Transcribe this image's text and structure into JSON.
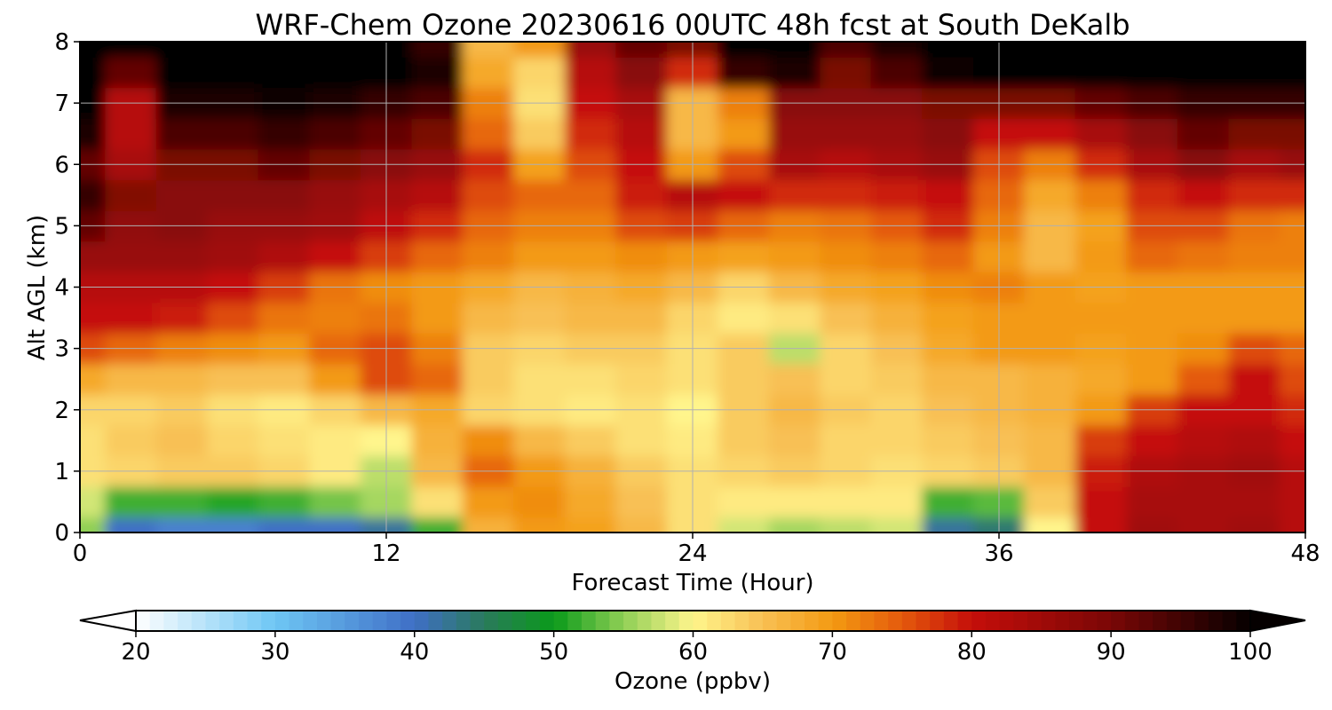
{
  "chart_data": {
    "type": "heatmap",
    "title": "WRF-Chem Ozone  20230616 00UTC 48h fcst at South DeKalb",
    "xlabel": "Forecast Time (Hour)",
    "ylabel": "Alt AGL (km)",
    "xlim": [
      0,
      48
    ],
    "ylim": [
      0,
      8
    ],
    "xticks": [
      0,
      12,
      24,
      36,
      48
    ],
    "xtick_labels": [
      "0",
      "12",
      "24",
      "36",
      "48"
    ],
    "yticks": [
      0,
      1,
      2,
      3,
      4,
      5,
      6,
      7,
      8
    ],
    "ytick_labels": [
      "0",
      "1",
      "2",
      "3",
      "4",
      "5",
      "6",
      "7",
      "8"
    ],
    "grid": true,
    "colorbar": {
      "label": "Ozone  (ppbv)",
      "range": [
        20,
        100
      ],
      "extend": "both",
      "ticks": [
        20,
        30,
        40,
        50,
        60,
        70,
        80,
        90,
        100
      ],
      "tick_labels": [
        "20",
        "30",
        "40",
        "50",
        "60",
        "70",
        "80",
        "90",
        "100"
      ],
      "stops": [
        {
          "v": 20,
          "c": "#ffffff"
        },
        {
          "v": 30,
          "c": "#6ec6f4"
        },
        {
          "v": 40,
          "c": "#3f6fc6"
        },
        {
          "v": 45,
          "c": "#2a7a5c"
        },
        {
          "v": 50,
          "c": "#0a9a1a"
        },
        {
          "v": 55,
          "c": "#8fcf55"
        },
        {
          "v": 60,
          "c": "#fff58c"
        },
        {
          "v": 65,
          "c": "#f8c054"
        },
        {
          "v": 70,
          "c": "#f39a12"
        },
        {
          "v": 75,
          "c": "#e45a0c"
        },
        {
          "v": 80,
          "c": "#c50e0a"
        },
        {
          "v": 90,
          "c": "#7a0706"
        },
        {
          "v": 100,
          "c": "#050000"
        }
      ]
    },
    "x": [
      0,
      2,
      4,
      6,
      8,
      10,
      12,
      14,
      16,
      18,
      20,
      22,
      24,
      26,
      28,
      30,
      32,
      34,
      36,
      38,
      40,
      42,
      44,
      46,
      48
    ],
    "y": [
      0,
      0.5,
      1,
      1.5,
      2,
      2.5,
      3,
      3.5,
      4,
      4.5,
      5,
      5.5,
      6,
      6.5,
      7,
      7.5,
      8
    ],
    "z": [
      [
        55,
        40,
        38,
        38,
        40,
        40,
        42,
        52,
        67,
        70,
        69,
        66,
        62,
        58,
        56,
        57,
        58,
        42,
        44,
        60,
        80,
        85,
        84,
        85,
        82
      ],
      [
        58,
        52,
        52,
        51,
        52,
        54,
        56,
        62,
        70,
        71,
        68,
        65,
        62,
        61,
        61,
        61,
        61,
        52,
        53,
        64,
        80,
        84,
        84,
        84,
        82
      ],
      [
        62,
        63,
        64,
        64,
        63,
        61,
        57,
        66,
        74,
        70,
        67,
        64,
        62,
        63,
        64,
        63,
        62,
        63,
        64,
        66,
        79,
        83,
        84,
        85,
        82
      ],
      [
        62,
        64,
        65,
        63,
        62,
        61,
        60,
        67,
        71,
        66,
        64,
        62,
        61,
        64,
        65,
        63,
        63,
        64,
        65,
        66,
        77,
        80,
        82,
        83,
        80
      ],
      [
        63,
        63,
        64,
        62,
        61,
        63,
        66,
        68,
        63,
        62,
        61,
        62,
        60,
        64,
        66,
        64,
        63,
        65,
        66,
        67,
        70,
        77,
        80,
        80,
        78
      ],
      [
        68,
        66,
        66,
        65,
        65,
        70,
        76,
        74,
        64,
        62,
        62,
        63,
        62,
        64,
        65,
        63,
        64,
        66,
        66,
        67,
        68,
        70,
        75,
        80,
        76
      ],
      [
        76,
        74,
        72,
        71,
        70,
        74,
        76,
        72,
        64,
        63,
        64,
        64,
        62,
        64,
        57,
        63,
        65,
        68,
        70,
        70,
        69,
        70,
        71,
        76,
        74
      ],
      [
        80,
        80,
        79,
        76,
        73,
        72,
        73,
        70,
        66,
        65,
        66,
        66,
        63,
        61,
        62,
        65,
        67,
        69,
        70,
        70,
        70,
        70,
        70,
        70,
        70
      ],
      [
        82,
        82,
        82,
        80,
        77,
        73,
        71,
        70,
        68,
        66,
        67,
        68,
        66,
        63,
        66,
        68,
        69,
        71,
        72,
        70,
        69,
        70,
        70,
        70,
        70
      ],
      [
        86,
        86,
        86,
        85,
        83,
        80,
        77,
        74,
        72,
        70,
        70,
        71,
        70,
        69,
        70,
        71,
        72,
        74,
        70,
        66,
        70,
        74,
        73,
        72,
        72
      ],
      [
        92,
        87,
        88,
        86,
        86,
        85,
        81,
        78,
        74,
        72,
        72,
        76,
        77,
        74,
        72,
        73,
        75,
        78,
        72,
        66,
        69,
        76,
        76,
        73,
        72
      ],
      [
        96,
        89,
        88,
        88,
        88,
        86,
        84,
        82,
        76,
        74,
        74,
        79,
        82,
        80,
        78,
        78,
        79,
        80,
        74,
        68,
        72,
        78,
        80,
        78,
        78
      ],
      [
        92,
        84,
        90,
        90,
        92,
        90,
        88,
        86,
        78,
        69,
        76,
        80,
        70,
        76,
        84,
        82,
        84,
        86,
        76,
        72,
        78,
        84,
        88,
        84,
        86
      ],
      [
        98,
        82,
        94,
        94,
        96,
        94,
        92,
        90,
        74,
        64,
        78,
        82,
        66,
        70,
        86,
        86,
        86,
        88,
        80,
        80,
        84,
        88,
        92,
        90,
        90
      ],
      [
        100,
        82,
        98,
        98,
        99,
        98,
        96,
        94,
        72,
        62,
        80,
        84,
        66,
        72,
        88,
        88,
        88,
        90,
        90,
        90,
        92,
        94,
        96,
        96,
        96
      ],
      [
        100,
        92,
        100,
        100,
        100,
        100,
        100,
        98,
        68,
        63,
        82,
        88,
        78,
        96,
        98,
        90,
        94,
        99,
        100,
        100,
        100,
        100,
        100,
        100,
        100
      ],
      [
        100,
        100,
        100,
        100,
        100,
        100,
        100,
        96,
        66,
        70,
        86,
        92,
        90,
        100,
        100,
        94,
        98,
        100,
        100,
        100,
        100,
        100,
        100,
        100,
        100
      ]
    ]
  }
}
